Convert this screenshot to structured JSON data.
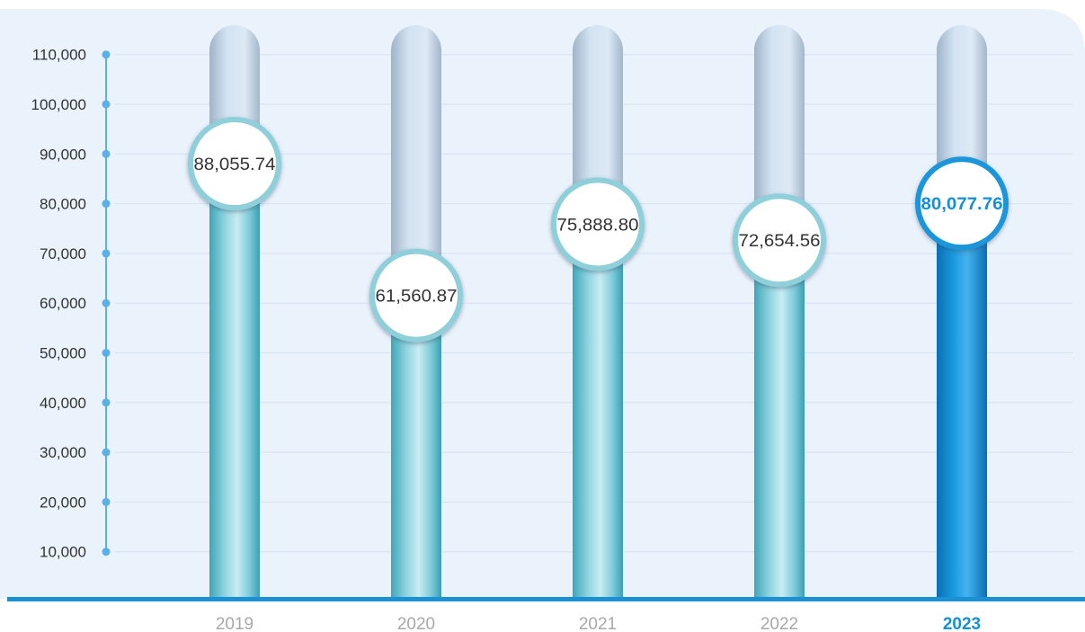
{
  "chart_data": {
    "type": "bar",
    "categories": [
      "2019",
      "2020",
      "2021",
      "2022",
      "2023"
    ],
    "values": [
      88055.74,
      61560.87,
      75888.8,
      72654.56,
      80077.76
    ],
    "value_labels": [
      "88,055.74",
      "61,560.87",
      "75,888.80",
      "72,654.56",
      "80,077.76"
    ],
    "highlight_index": 4,
    "ylim": [
      0,
      110000
    ],
    "yticks": [
      10000,
      20000,
      30000,
      40000,
      50000,
      60000,
      70000,
      80000,
      90000,
      100000,
      110000
    ],
    "ytick_labels": [
      "10,000",
      "20,000",
      "30,000",
      "40,000",
      "50,000",
      "60,000",
      "70,000",
      "80,000",
      "90,000",
      "100,000",
      "110,000"
    ],
    "grid": true,
    "title": "",
    "xlabel": "",
    "ylabel": "",
    "colors": {
      "background": "#eaf2fb",
      "bar": "#7fcbd8",
      "bar_highlight": "#1590d6",
      "track": "#c9dcee",
      "circle_border": "#8fcfd9",
      "circle_border_highlight": "#1a96da",
      "axis": "#1a90d4",
      "axis_dot": "#5bb0e8",
      "tick_label": "#333333",
      "x_label": "#a8a8a8",
      "x_label_highlight": "#1590d6"
    }
  }
}
